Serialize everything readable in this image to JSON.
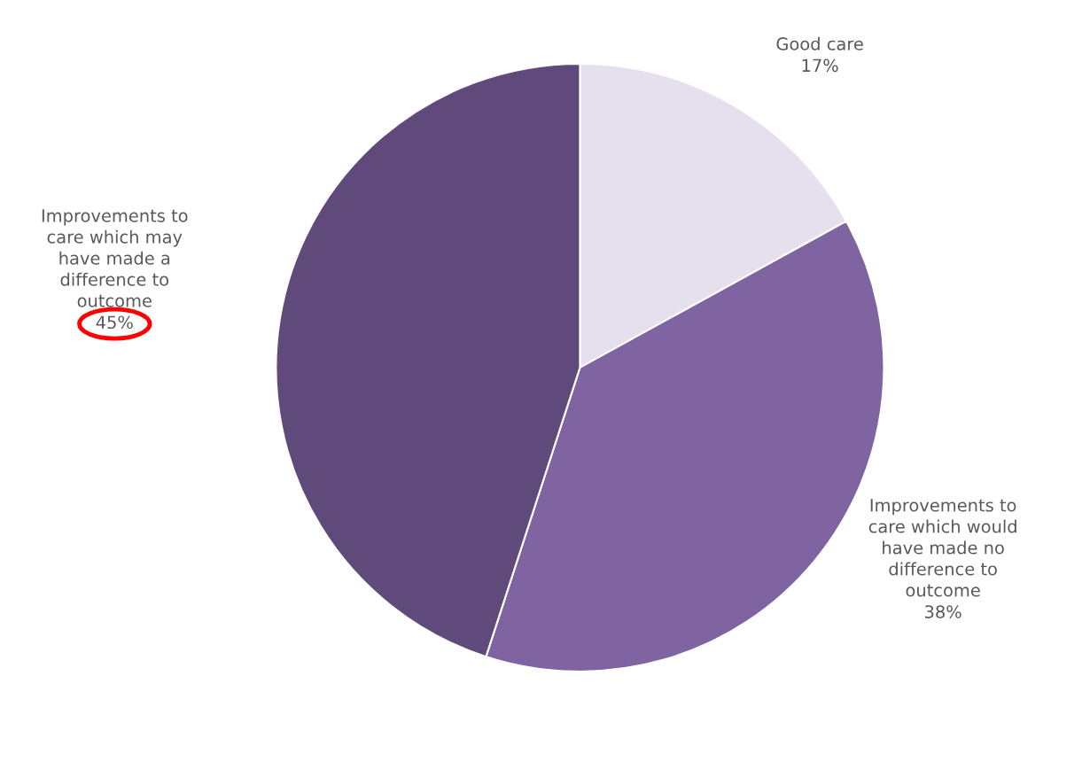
{
  "chart_data": {
    "type": "pie",
    "categories": [
      "Good care",
      "Improvements to care which would have made no difference to outcome",
      "Improvements to care which may have made a difference to outcome"
    ],
    "values": [
      17,
      38,
      45
    ],
    "value_labels": [
      "17%",
      "38%",
      "45%"
    ],
    "colors": [
      "#e6e0ee",
      "#8064a2",
      "#604a7b"
    ]
  }
}
